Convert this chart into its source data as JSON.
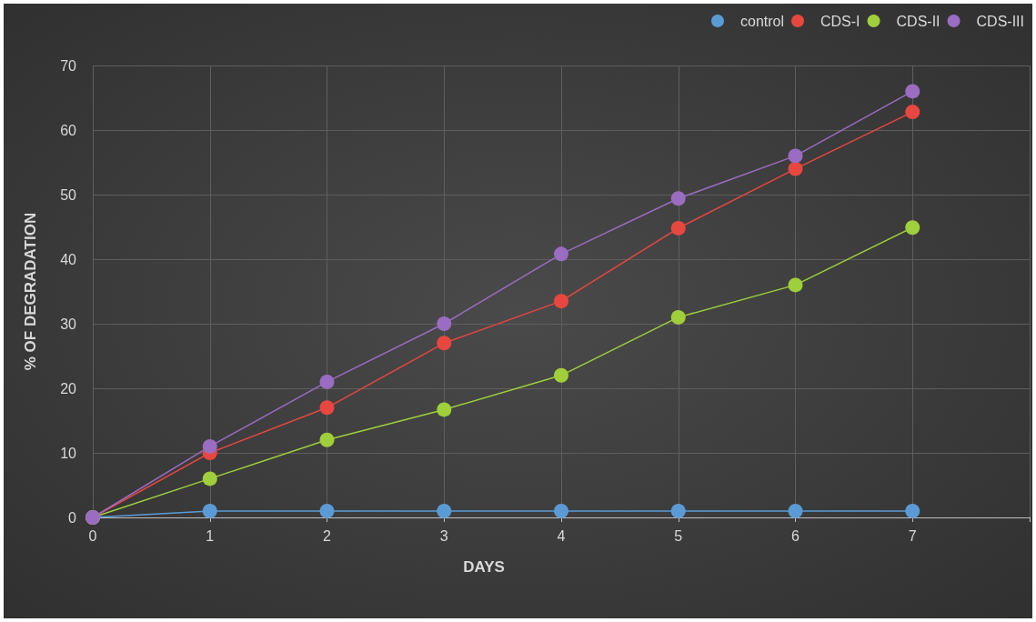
{
  "chart_data": {
    "type": "line",
    "xlabel": "DAYS",
    "ylabel": "% OF DEGRADATION",
    "x": [
      0,
      1,
      2,
      3,
      4,
      5,
      6,
      7
    ],
    "series": [
      {
        "name": "control",
        "color": "#5b9bd5",
        "values": [
          0,
          1,
          1,
          1,
          1,
          1,
          1,
          1
        ]
      },
      {
        "name": "CDS-I",
        "color": "#e8473f",
        "values": [
          0,
          10,
          17,
          27,
          33.5,
          44.8,
          54,
          62.8
        ]
      },
      {
        "name": "CDS-II",
        "color": "#9fcf3a",
        "values": [
          0,
          6,
          12,
          16.7,
          22,
          31,
          36,
          44.9
        ]
      },
      {
        "name": "CDS-III",
        "color": "#9a6cc2",
        "values": [
          0,
          11,
          21,
          30,
          40.8,
          49.4,
          56,
          66
        ]
      }
    ],
    "xlim": [
      0,
      8
    ],
    "xticks": [
      0,
      1,
      2,
      3,
      4,
      5,
      6,
      7,
      {
        "value": 8,
        "label": null
      }
    ],
    "ylim": [
      0,
      70
    ],
    "yticks": [
      0,
      10,
      20,
      30,
      40,
      50,
      60,
      70
    ],
    "grid": true,
    "legend": "top right",
    "marker": "circle",
    "line_style": "solid"
  }
}
